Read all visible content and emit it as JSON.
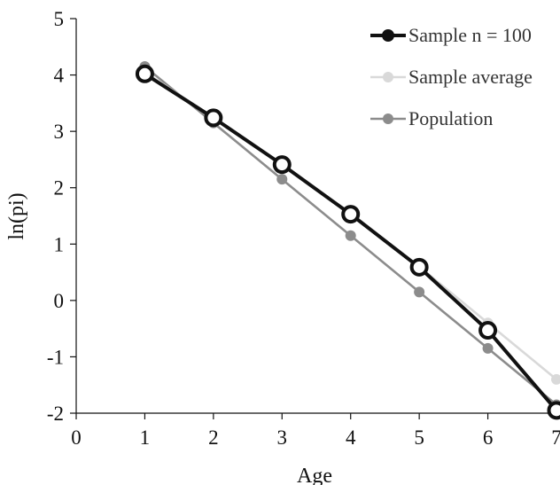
{
  "chart_data": {
    "type": "line",
    "title": "",
    "xlabel": "Age",
    "ylabel": "ln(pi)",
    "xlim": [
      0,
      7
    ],
    "ylim": [
      -2,
      5
    ],
    "x_ticks": [
      "0",
      "1",
      "2",
      "3",
      "4",
      "5",
      "6",
      "7"
    ],
    "y_ticks": [
      "-2",
      "-1",
      "0",
      "1",
      "2",
      "3",
      "4",
      "5"
    ],
    "grid": false,
    "legend_position": "top-right",
    "x": [
      1,
      2,
      3,
      4,
      5,
      6,
      7
    ],
    "series": [
      {
        "name": "Population",
        "values": [
          4.15,
          3.15,
          2.15,
          1.15,
          0.15,
          -0.85,
          -1.85
        ],
        "color": "#8c8c8c",
        "marker": "filled-circle"
      },
      {
        "name": "Sample average",
        "values": [
          4.05,
          3.25,
          2.4,
          1.55,
          0.6,
          -0.4,
          -1.4
        ],
        "color": "#d9d9d9",
        "marker": "filled-circle"
      },
      {
        "name": "Sample n = 100",
        "values": [
          4.02,
          3.24,
          2.41,
          1.53,
          0.59,
          -0.53,
          -1.95
        ],
        "color": "#111111",
        "marker": "hollow-circle"
      }
    ],
    "legend_order": [
      "Sample n = 100",
      "Sample average",
      "Population"
    ]
  }
}
